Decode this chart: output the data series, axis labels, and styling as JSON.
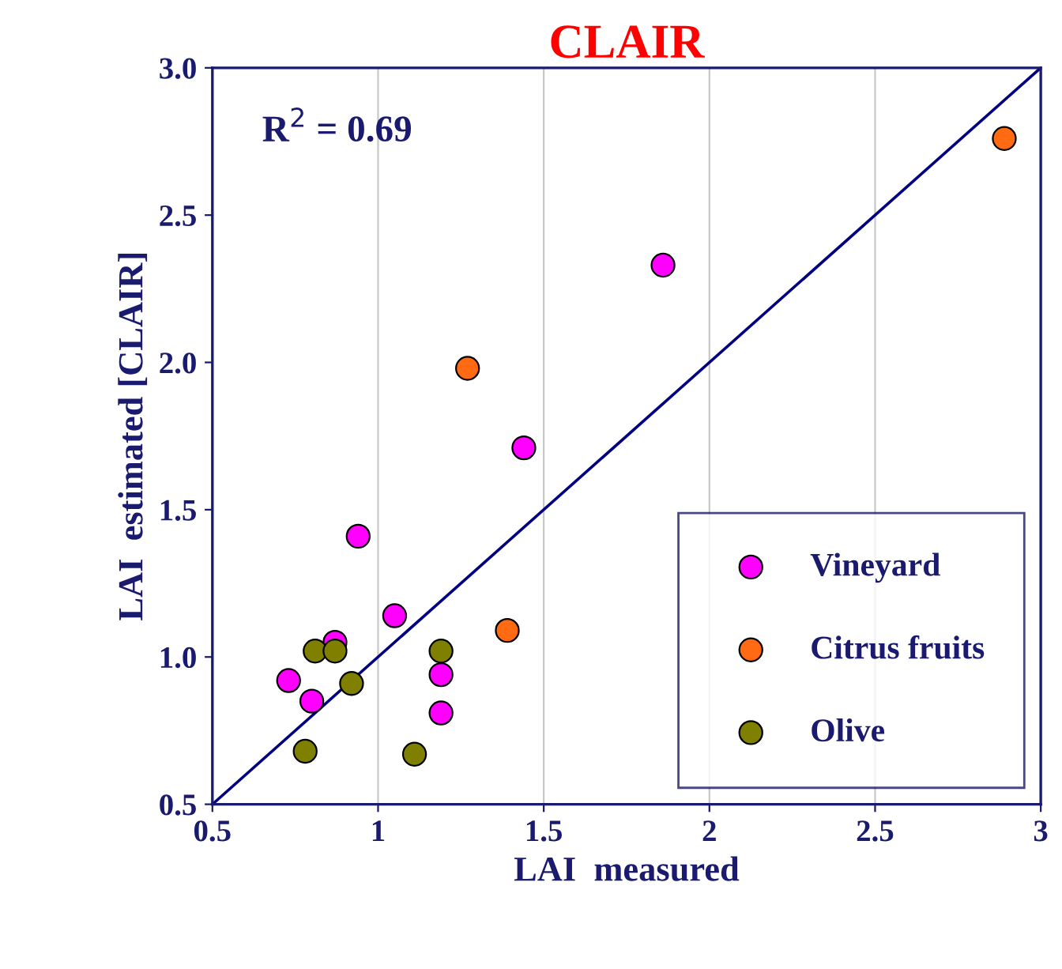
{
  "chart_data": {
    "type": "scatter",
    "title": "CLAIR",
    "xlabel": "LAI  measured",
    "ylabel": "LAI  estimated [CLAIR]",
    "annotations": [
      "R$^{2}$ = 0.69"
    ],
    "xlim": [
      0.5,
      3
    ],
    "ylim": [
      0.5,
      3
    ],
    "xticks": [
      0.5,
      1,
      1.5,
      2,
      2.5,
      3
    ],
    "yticks": [
      0.5,
      {
        "value": 1,
        "label": "1.0"
      },
      1.5,
      {
        "value": 2,
        "label": "2.0"
      },
      2.5,
      {
        "value": 3,
        "label": "3.0"
      }
    ],
    "grid": "x",
    "legend": "bottom right",
    "marker": "circle",
    "series": [
      {
        "name": "Vineyard",
        "color": "#ff00ff",
        "x": [
          1.86,
          1.44,
          0.94,
          0.73,
          0.8,
          0.87,
          1.05,
          1.19,
          1.19
        ],
        "values": [
          2.33,
          1.71,
          1.41,
          0.92,
          0.85,
          1.05,
          1.14,
          0.94,
          0.81
        ]
      },
      {
        "name": "Citrus fruits",
        "color": "#ff6a13",
        "x": [
          2.89,
          1.27,
          1.39
        ],
        "values": [
          2.76,
          1.98,
          1.09
        ]
      },
      {
        "name": "Olive",
        "color": "#808000",
        "x": [
          0.78,
          0.81,
          0.87,
          0.92,
          1.19,
          1.11
        ],
        "values": [
          0.68,
          1.02,
          1.02,
          0.91,
          1.02,
          0.67
        ]
      },
      {
        "type": "line",
        "marker": "none",
        "color": "#000080",
        "x": [
          0.5,
          3
        ],
        "values": [
          0.5,
          3
        ]
      }
    ]
  }
}
